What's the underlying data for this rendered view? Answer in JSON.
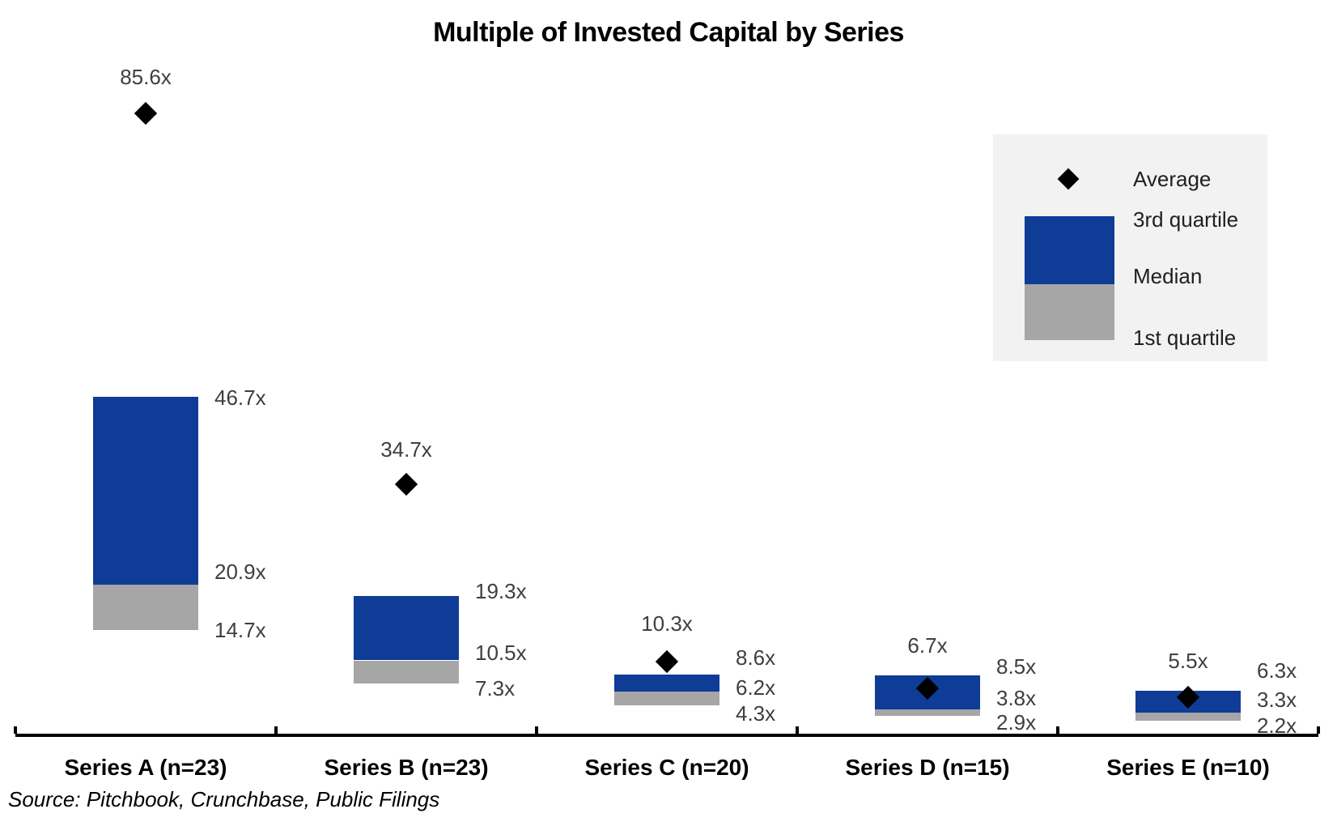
{
  "title": "Multiple of Invested Capital by Series",
  "source_note": "Source: Pitchbook, Crunchbase, Public Filings",
  "legend": {
    "average_label": "Average",
    "q3_label": "3rd quartile",
    "median_label": "Median",
    "q1_label": "1st quartile"
  },
  "colors": {
    "bar_blue": "#0f3c96",
    "bar_gray": "#a6a6a6",
    "diamond": "#000000",
    "value_label": "#3f3f3f",
    "axis": "#000000",
    "legend_bg": "#f2f2f2",
    "text": "#000000",
    "background": "#ffffff"
  },
  "chart_data": {
    "type": "bar",
    "subtype": "floating-quartile-bars-with-average-diamond-markers",
    "title": "Multiple of Invested Capital by Series",
    "categories": [
      "Series A (n=23)",
      "Series B (n=23)",
      "Series C (n=20)",
      "Series D (n=15)",
      "Series E (n=10)"
    ],
    "series": [
      {
        "name": "Average",
        "marker": "diamond",
        "values": [
          85.6,
          34.7,
          10.3,
          6.7,
          5.5
        ]
      },
      {
        "name": "3rd quartile",
        "values": [
          46.7,
          19.3,
          8.6,
          8.5,
          6.3
        ]
      },
      {
        "name": "Median",
        "values": [
          20.9,
          10.5,
          6.2,
          3.8,
          3.3
        ]
      },
      {
        "name": "1st quartile",
        "values": [
          14.7,
          7.3,
          4.3,
          2.9,
          2.2
        ]
      }
    ],
    "value_suffix": "x",
    "ylim": [
      0,
      101
    ],
    "grid": false,
    "legend_position": "upper-right",
    "source": "Source: Pitchbook, Crunchbase, Public Filings"
  }
}
